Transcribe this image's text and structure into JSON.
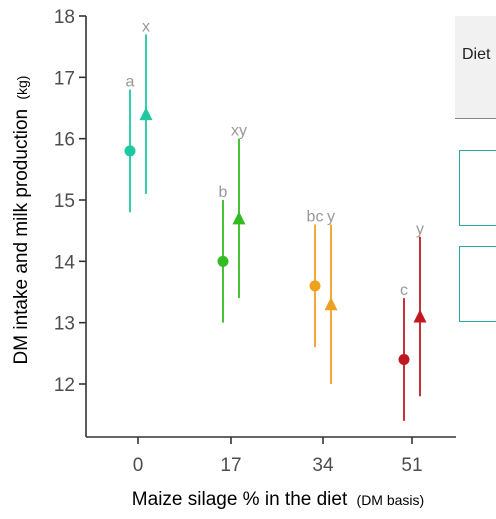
{
  "chart_data": {
    "type": "scatter",
    "ylabel": "DM intake and milk production",
    "ylabel_unit": "(kg)",
    "xlabel": "Maize silage % in the diet",
    "xlabel_note": "(DM basis)",
    "categories": [
      "0",
      "17",
      "34",
      "51"
    ],
    "ylim": [
      11.2,
      18.1
    ],
    "yticks": [
      "12",
      "13",
      "14",
      "15",
      "16",
      "17",
      "18"
    ],
    "grid": false,
    "series": [
      {
        "marker": "circle",
        "points": [
          {
            "x": "0",
            "y": 15.8,
            "lower": 14.8,
            "upper": 16.8,
            "label": "a",
            "color": "#1ec8a0"
          },
          {
            "x": "17",
            "y": 14.0,
            "lower": 13.0,
            "upper": 15.0,
            "label": "b",
            "color": "#33bb22"
          },
          {
            "x": "34",
            "y": 13.6,
            "lower": 12.6,
            "upper": 14.6,
            "label": "bc",
            "color": "#f0a020"
          },
          {
            "x": "51",
            "y": 12.4,
            "lower": 11.4,
            "upper": 13.4,
            "label": "c",
            "color": "#c01820"
          }
        ]
      },
      {
        "marker": "triangle",
        "points": [
          {
            "x": "0",
            "y": 16.4,
            "lower": 15.1,
            "upper": 17.7,
            "label": "x",
            "color": "#1ec8a0"
          },
          {
            "x": "17",
            "y": 14.7,
            "lower": 13.4,
            "upper": 16.0,
            "label": "xy",
            "color": "#33bb22"
          },
          {
            "x": "34",
            "y": 13.3,
            "lower": 12.0,
            "upper": 14.6,
            "label": "y",
            "color": "#f0a020"
          },
          {
            "x": "51",
            "y": 13.1,
            "lower": 11.8,
            "upper": 14.4,
            "label": "y",
            "color": "#c01820"
          }
        ]
      }
    ]
  },
  "legend": {
    "header": "Diet"
  },
  "colors": {
    "axis": "#333333",
    "tick_text": "#4d4d4d",
    "letter_label": "#999999",
    "legend_border": "#2aa7a0"
  }
}
